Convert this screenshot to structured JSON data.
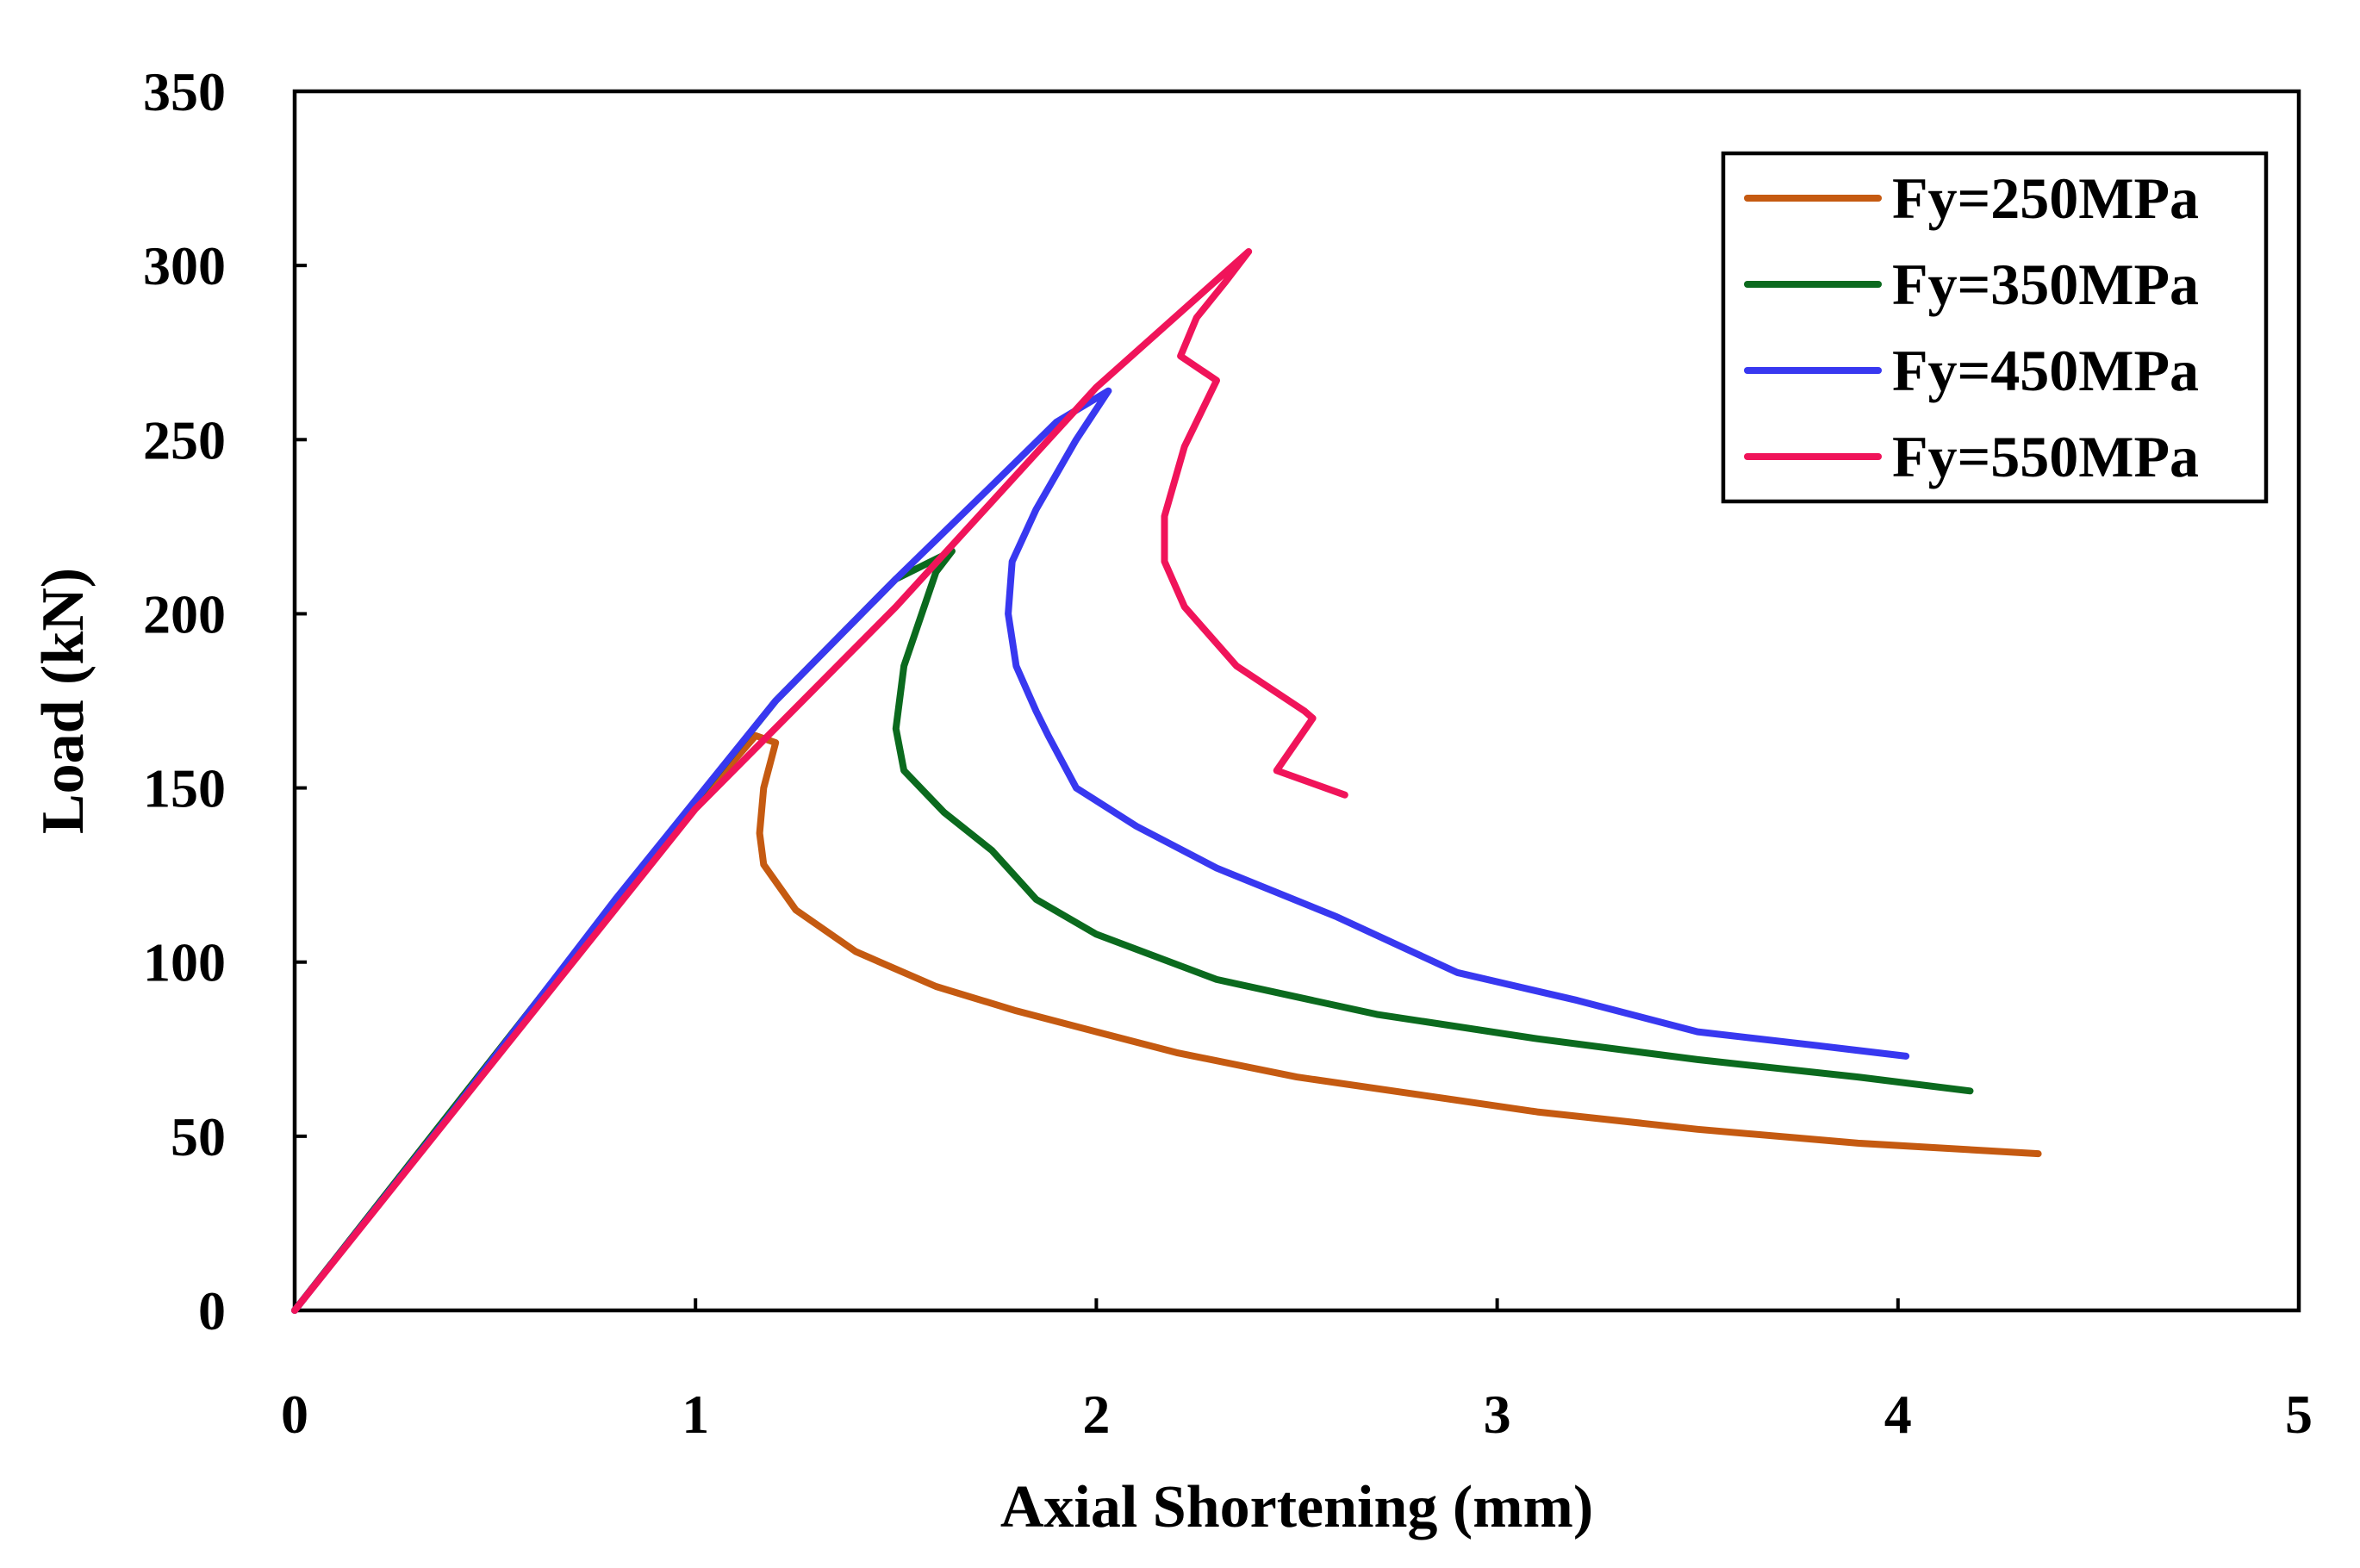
{
  "chart_data": {
    "type": "line",
    "title": "",
    "xlabel": "Axial Shortening (mm)",
    "ylabel": "Load (kN)",
    "xlim": [
      0,
      5
    ],
    "ylim": [
      0,
      350
    ],
    "xticks": [
      0,
      1,
      2,
      3,
      4,
      5
    ],
    "yticks": [
      0,
      50,
      100,
      150,
      200,
      250,
      300,
      350
    ],
    "grid": false,
    "legend_position": "top-right",
    "series": [
      {
        "name": "Fy=250MPa",
        "color": "#C55A11",
        "x": [
          0,
          0.3,
          0.6,
          0.9,
          1.15,
          1.2,
          1.17,
          1.16,
          1.17,
          1.25,
          1.4,
          1.6,
          1.8,
          2.0,
          2.2,
          2.5,
          2.8,
          3.1,
          3.5,
          3.9,
          4.35
        ],
        "y": [
          0,
          44,
          88,
          132,
          165,
          163,
          150,
          137,
          128,
          115,
          103,
          93,
          86,
          80,
          74,
          67,
          62,
          57,
          52,
          48,
          45
        ]
      },
      {
        "name": "Fy=350MPa",
        "color": "#0B6A1E",
        "x": [
          0,
          0.3,
          0.6,
          0.9,
          1.2,
          1.5,
          1.64,
          1.6,
          1.52,
          1.5,
          1.52,
          1.62,
          1.74,
          1.85,
          2.0,
          2.3,
          2.7,
          3.1,
          3.5,
          3.9,
          4.18
        ],
        "y": [
          0,
          44,
          88,
          132,
          175,
          210,
          218,
          212,
          185,
          167,
          155,
          143,
          132,
          118,
          108,
          95,
          85,
          78,
          72,
          67,
          63
        ]
      },
      {
        "name": "Fy=450MPa",
        "color": "#3838F0",
        "x": [
          0,
          0.4,
          0.8,
          1.2,
          1.5,
          1.75,
          1.9,
          2.03,
          1.95,
          1.85,
          1.79,
          1.78,
          1.8,
          1.85,
          1.88,
          1.95,
          2.1,
          2.3,
          2.6,
          2.9,
          3.2,
          3.5,
          3.8,
          4.02
        ],
        "y": [
          0,
          58,
          118,
          175,
          210,
          238,
          255,
          264,
          250,
          230,
          215,
          200,
          185,
          172,
          165,
          150,
          139,
          127,
          113,
          97,
          89,
          80,
          76,
          73
        ]
      },
      {
        "name": "Fy=550MPa",
        "color": "#F0145A",
        "x": [
          0,
          0.5,
          1.0,
          1.5,
          2.0,
          2.38,
          2.32,
          2.25,
          2.21,
          2.3,
          2.22,
          2.17,
          2.17,
          2.22,
          2.35,
          2.52,
          2.54,
          2.45,
          2.62
        ],
        "y": [
          0,
          72,
          144,
          202,
          265,
          304,
          295,
          285,
          274,
          267,
          248,
          228,
          215,
          202,
          185,
          172,
          170,
          155,
          148
        ]
      }
    ]
  }
}
